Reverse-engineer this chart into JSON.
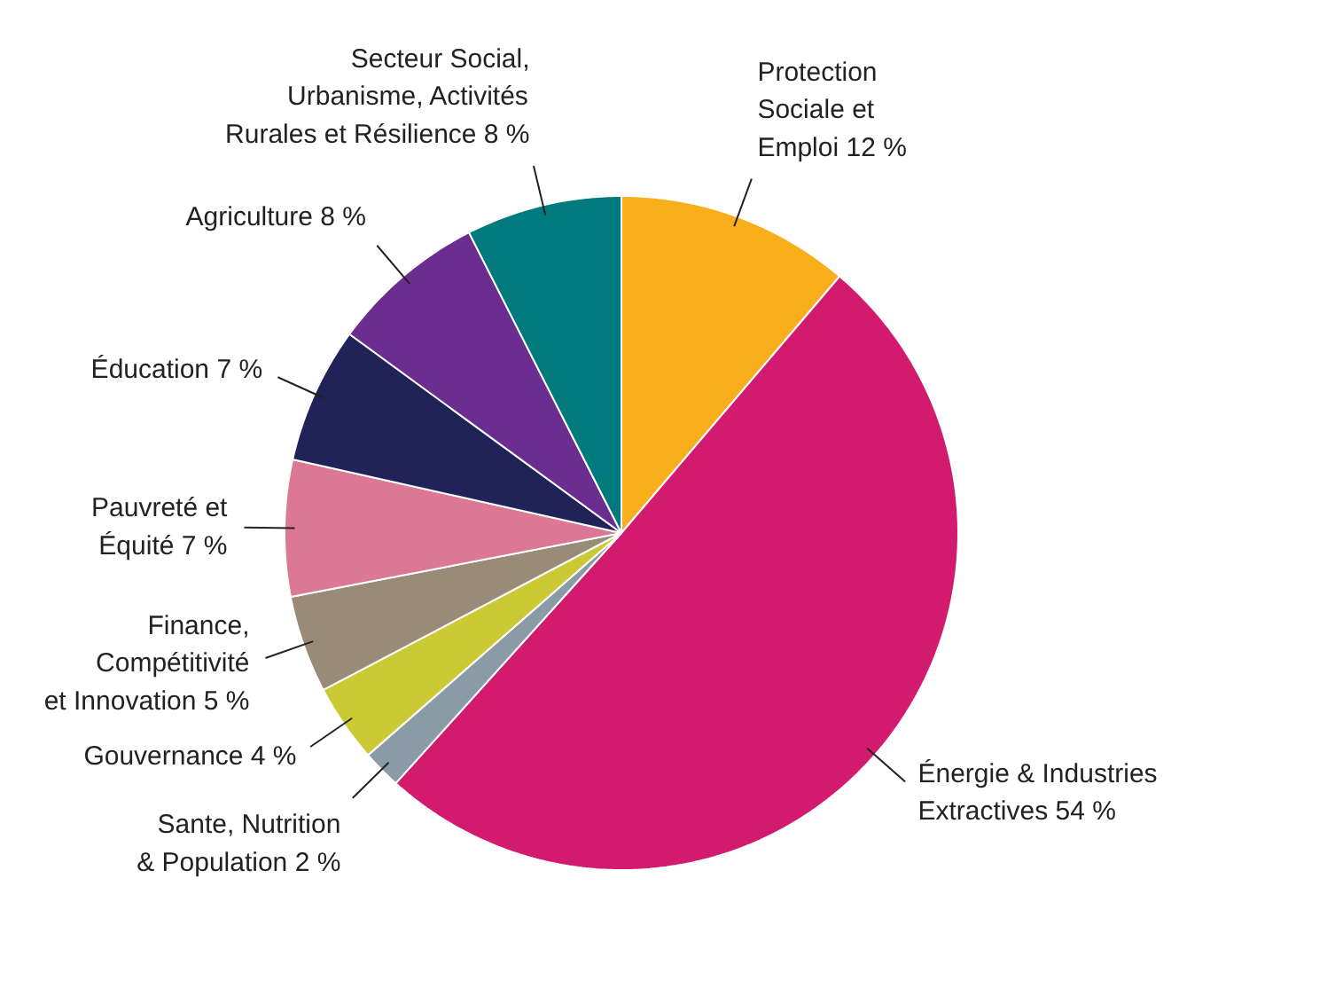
{
  "chart_data": {
    "type": "pie",
    "categories": [
      "Protection\nSociale et\nEmploi",
      "Énergie & Industries\nExtractives",
      "Sante, Nutrition\n& Population",
      "Gouvernance",
      "Finance,\nCompétitivité\net Innovation",
      "Pauvreté et\nÉquité",
      "Éducation",
      "Agriculture",
      "Secteur Social,\nUrbanisme, Activités\nRurales et Résilience"
    ],
    "values": [
      12,
      54,
      2,
      4,
      5,
      7,
      7,
      8,
      8
    ],
    "value_labels": [
      "12 %",
      "54 %",
      "2 %",
      "4 %",
      "5 %",
      "7 %",
      "7 %",
      "8 %",
      "8 %"
    ],
    "colors": [
      "#f9ae1b",
      "#d21b6f",
      "#8a9ba6",
      "#cbc934",
      "#9a8b78",
      "#dc7895",
      "#1f2358",
      "#6b2e90",
      "#007a7c"
    ]
  }
}
